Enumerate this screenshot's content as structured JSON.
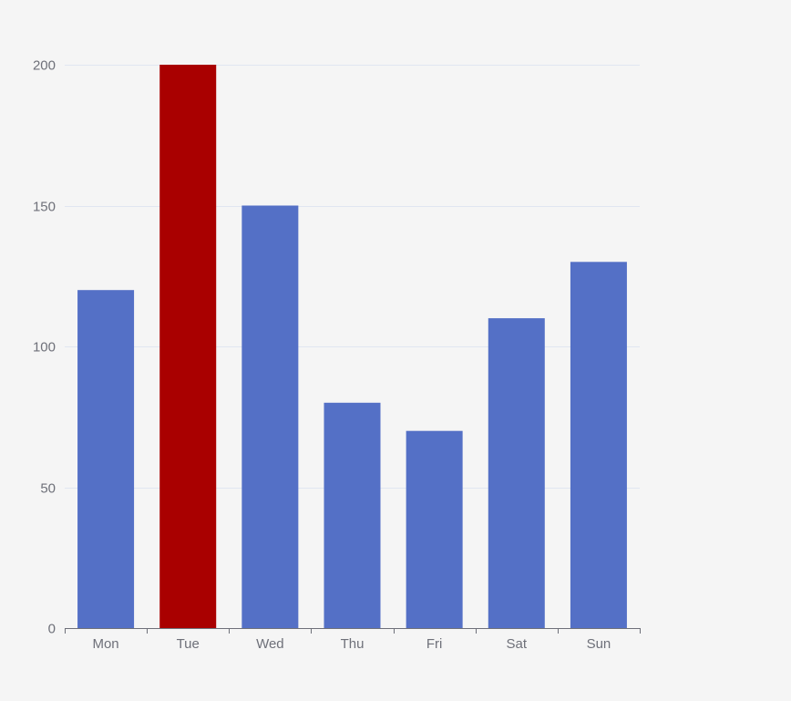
{
  "chart_data": {
    "type": "bar",
    "categories": [
      "Mon",
      "Tue",
      "Wed",
      "Thu",
      "Fri",
      "Sat",
      "Sun"
    ],
    "values": [
      120,
      200,
      150,
      80,
      70,
      110,
      130
    ],
    "colors": [
      "#5470c6",
      "#a90000",
      "#5470c6",
      "#5470c6",
      "#5470c6",
      "#5470c6",
      "#5470c6"
    ],
    "highlight_index": 1,
    "ylim": [
      0,
      200
    ],
    "yticks": [
      0,
      50,
      100,
      150,
      200
    ],
    "grid": true,
    "title": "",
    "xlabel": "",
    "ylabel": ""
  },
  "style": {
    "background": "#f5f5f5",
    "bar_color": "#5470c6",
    "highlight_color": "#a90000",
    "axis_color": "#6e7079",
    "grid_color": "#e0e6f1"
  }
}
